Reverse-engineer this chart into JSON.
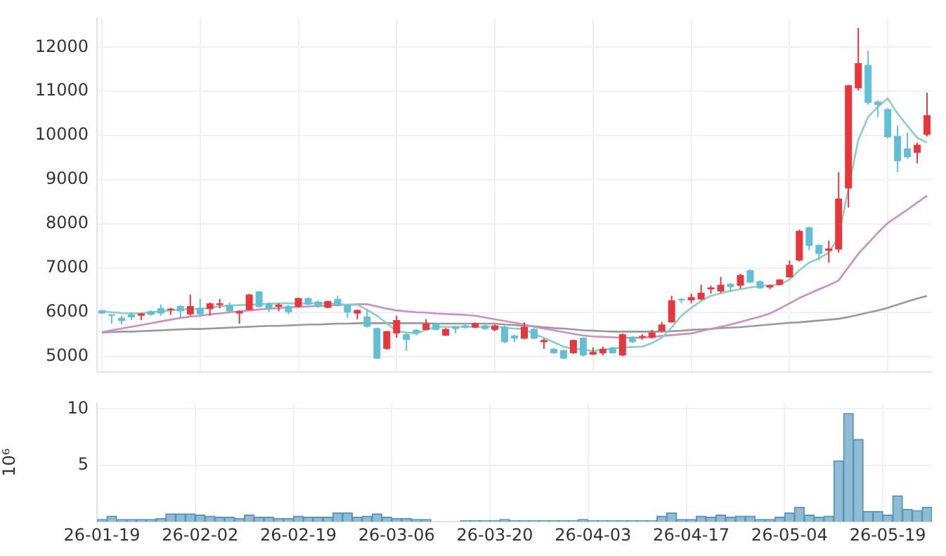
{
  "chart_data": [
    {
      "type": "candlestick",
      "tick_labels": "y",
      "grid": true,
      "ylim": [
        4650,
        12650
      ],
      "yticks": [
        5000,
        6000,
        7000,
        8000,
        9000,
        10000,
        11000,
        12000
      ],
      "categories": [
        null,
        null,
        null,
        null,
        null,
        null,
        null,
        null,
        null,
        null,
        null,
        null,
        null,
        null,
        null,
        null,
        null,
        null,
        null,
        null,
        null,
        null,
        null,
        null,
        null,
        null,
        null,
        null,
        null,
        null,
        null,
        null,
        null,
        null,
        null,
        null,
        null,
        null,
        null,
        null,
        null,
        null,
        null,
        null,
        null,
        null,
        null,
        null,
        null,
        null,
        null,
        null,
        null,
        null,
        null,
        null,
        null,
        null,
        null,
        null,
        null,
        null,
        null,
        null,
        null,
        null,
        null,
        null,
        null,
        null,
        null,
        null,
        null,
        null,
        null,
        null,
        null,
        null,
        null,
        null,
        null,
        null,
        null,
        null,
        null
      ],
      "ohlc": [
        [
          6040,
          6050,
          5960,
          5970
        ],
        [
          5950,
          5960,
          5740,
          5920
        ],
        [
          5870,
          5920,
          5720,
          5800
        ],
        [
          5950,
          6000,
          5820,
          5880
        ],
        [
          5920,
          5980,
          5820,
          5970
        ],
        [
          6020,
          6040,
          5920,
          5940
        ],
        [
          6090,
          6170,
          5920,
          5970
        ],
        [
          6050,
          6100,
          5940,
          6080
        ],
        [
          6140,
          6160,
          5850,
          6020
        ],
        [
          5950,
          6400,
          5920,
          6140
        ],
        [
          6100,
          6300,
          5890,
          5950
        ],
        [
          6070,
          6220,
          5920,
          6200
        ],
        [
          6160,
          6300,
          6090,
          6200
        ],
        [
          6170,
          6220,
          5970,
          6020
        ],
        [
          5970,
          6040,
          5740,
          6020
        ],
        [
          6050,
          6410,
          6040,
          6400
        ],
        [
          6470,
          6480,
          6100,
          6120
        ],
        [
          6200,
          6220,
          6000,
          6070
        ],
        [
          6120,
          6200,
          6020,
          6170
        ],
        [
          6140,
          6160,
          5950,
          6000
        ],
        [
          6120,
          6330,
          6100,
          6320
        ],
        [
          6320,
          6330,
          6160,
          6170
        ],
        [
          6240,
          6260,
          6100,
          6120
        ],
        [
          6100,
          6260,
          6090,
          6250
        ],
        [
          6300,
          6370,
          6130,
          6150
        ],
        [
          6170,
          6190,
          5870,
          5990
        ],
        [
          5970,
          6060,
          5840,
          6050
        ],
        [
          5900,
          6070,
          5650,
          5670
        ],
        [
          5640,
          5650,
          4940,
          4950
        ],
        [
          5170,
          5570,
          5150,
          5570
        ],
        [
          5520,
          5920,
          5420,
          5820
        ],
        [
          5500,
          5520,
          5120,
          5370
        ],
        [
          5600,
          5620,
          5470,
          5520
        ],
        [
          5600,
          5840,
          5590,
          5740
        ],
        [
          5740,
          5760,
          5590,
          5600
        ],
        [
          5470,
          5640,
          5460,
          5620
        ],
        [
          5670,
          5690,
          5520,
          5620
        ],
        [
          5700,
          5720,
          5630,
          5650
        ],
        [
          5650,
          5770,
          5640,
          5750
        ],
        [
          5700,
          5720,
          5600,
          5620
        ],
        [
          5600,
          5720,
          5570,
          5700
        ],
        [
          5670,
          5690,
          5300,
          5320
        ],
        [
          5470,
          5490,
          5320,
          5400
        ],
        [
          5400,
          5770,
          5390,
          5670
        ],
        [
          5620,
          5640,
          5390,
          5400
        ],
        [
          5320,
          5400,
          5170,
          5370
        ],
        [
          5170,
          5190,
          5060,
          5070
        ],
        [
          5140,
          5150,
          4940,
          4950
        ],
        [
          5070,
          5380,
          5060,
          5370
        ],
        [
          5420,
          5430,
          5000,
          5020
        ],
        [
          5040,
          5200,
          5030,
          5100
        ],
        [
          5070,
          5220,
          5020,
          5170
        ],
        [
          5200,
          5220,
          5060,
          5070
        ],
        [
          5020,
          5520,
          5000,
          5500
        ],
        [
          5440,
          5460,
          5300,
          5320
        ],
        [
          5440,
          5500,
          5380,
          5460
        ],
        [
          5420,
          5600,
          5400,
          5540
        ],
        [
          5570,
          5780,
          5560,
          5720
        ],
        [
          5770,
          6370,
          5760,
          6270
        ],
        [
          6300,
          6320,
          6200,
          6270
        ],
        [
          6270,
          6420,
          6200,
          6340
        ],
        [
          6290,
          6620,
          6270,
          6440
        ],
        [
          6520,
          6600,
          6420,
          6560
        ],
        [
          6470,
          6800,
          6440,
          6620
        ],
        [
          6640,
          6660,
          6470,
          6570
        ],
        [
          6600,
          6870,
          6530,
          6840
        ],
        [
          6950,
          6970,
          6660,
          6670
        ],
        [
          6700,
          6720,
          6530,
          6540
        ],
        [
          6560,
          6620,
          6520,
          6610
        ],
        [
          6620,
          6750,
          6610,
          6740
        ],
        [
          6790,
          7170,
          6780,
          7070
        ],
        [
          7170,
          7870,
          7150,
          7840
        ],
        [
          7920,
          7940,
          7400,
          7500
        ],
        [
          7520,
          7540,
          7170,
          7320
        ],
        [
          7390,
          7620,
          7120,
          7440
        ],
        [
          7420,
          9170,
          7350,
          8570
        ],
        [
          8800,
          11150,
          8370,
          11140
        ],
        [
          11070,
          12440,
          11020,
          11640
        ],
        [
          11600,
          11920,
          10700,
          10740
        ],
        [
          10770,
          10800,
          10420,
          10690
        ],
        [
          10600,
          10620,
          9940,
          9960
        ],
        [
          9990,
          10220,
          9170,
          9420
        ],
        [
          9710,
          10070,
          9480,
          9510
        ],
        [
          9610,
          9840,
          9370,
          9790
        ],
        [
          10020,
          10970,
          9980,
          10460
        ]
      ],
      "colors": [
        "#62bfd6",
        "#62bfd6",
        "#62bfd6",
        "#62bfd6",
        "#e8363d",
        "#62bfd6",
        "#62bfd6",
        "#e8363d",
        "#62bfd6",
        "#e8363d",
        "#62bfd6",
        "#e8363d",
        "#e8363d",
        "#62bfd6",
        "#e8363d",
        "#e8363d",
        "#62bfd6",
        "#62bfd6",
        "#e8363d",
        "#62bfd6",
        "#e8363d",
        "#62bfd6",
        "#62bfd6",
        "#e8363d",
        "#62bfd6",
        "#62bfd6",
        "#e8363d",
        "#62bfd6",
        "#62bfd6",
        "#e8363d",
        "#e8363d",
        "#62bfd6",
        "#62bfd6",
        "#e8363d",
        "#62bfd6",
        "#e8363d",
        "#62bfd6",
        "#62bfd6",
        "#e8363d",
        "#62bfd6",
        "#e8363d",
        "#62bfd6",
        "#62bfd6",
        "#e8363d",
        "#62bfd6",
        "#e8363d",
        "#62bfd6",
        "#62bfd6",
        "#e8363d",
        "#62bfd6",
        "#e8363d",
        "#e8363d",
        "#62bfd6",
        "#e8363d",
        "#62bfd6",
        "#e8363d",
        "#e8363d",
        "#e8363d",
        "#e8363d",
        "#62bfd6",
        "#e8363d",
        "#e8363d",
        "#e8363d",
        "#e8363d",
        "#62bfd6",
        "#e8363d",
        "#62bfd6",
        "#62bfd6",
        "#e8363d",
        "#e8363d",
        "#e8363d",
        "#e8363d",
        "#62bfd6",
        "#62bfd6",
        "#e8363d",
        "#e8363d",
        "#e8363d",
        "#e8363d",
        "#62bfd6",
        "#62bfd6",
        "#62bfd6",
        "#62bfd6",
        "#62bfd6",
        "#e8363d",
        "#e8363d"
      ],
      "series": [
        {
          "type": "line",
          "color": "#8ccfc0",
          "values": [
            6020,
            6000,
            5980,
            5970,
            5980,
            6000,
            6020,
            6040,
            6060,
            6070,
            6070,
            6100,
            6130,
            6150,
            6160,
            6170,
            6180,
            6190,
            6200,
            6200,
            6200,
            6200,
            6200,
            6200,
            6190,
            6160,
            6170,
            6050,
            5920,
            5750,
            5570,
            5540,
            5520,
            5600,
            5670,
            5670,
            5670,
            5670,
            5670,
            5670,
            5670,
            5650,
            5630,
            5620,
            5500,
            5420,
            5320,
            5220,
            5170,
            5150,
            5120,
            5150,
            5170,
            5200,
            5210,
            5220,
            5300,
            5420,
            5650,
            5920,
            6100,
            6250,
            6370,
            6430,
            6480,
            6520,
            6560,
            6590,
            6610,
            6620,
            6740,
            6950,
            7120,
            7220,
            7350,
            7700,
            null,
            9900,
            10420,
            10650,
            10840,
            10500,
            10220,
            9950,
            9840
          ]
        },
        {
          "type": "line",
          "color": "#cc8fc4",
          "values": [
            5550,
            5590,
            5630,
            5670,
            5710,
            5750,
            5790,
            5830,
            5870,
            5900,
            5920,
            5950,
            5970,
            6000,
            6020,
            6040,
            6060,
            6080,
            6090,
            6110,
            6120,
            6130,
            6140,
            6150,
            6160,
            6170,
            6180,
            6180,
            6130,
            6080,
            6040,
            6020,
            6000,
            5990,
            5970,
            5960,
            5950,
            5940,
            5920,
            5880,
            5840,
            5800,
            5760,
            5720,
            5670,
            5630,
            5590,
            5550,
            5510,
            5470,
            5450,
            5440,
            5430,
            5420,
            5420,
            5420,
            5440,
            5460,
            5480,
            5500,
            5520,
            5570,
            5620,
            5670,
            5720,
            5780,
            5840,
            5900,
            5970,
            6080,
            6200,
            6320,
            6420,
            6520,
            6610,
            6720,
            7020,
            7320,
            7560,
            7800,
            8020,
            8170,
            8320,
            8480,
            8640
          ]
        },
        {
          "type": "line",
          "color": "#999999",
          "values": [
            5540,
            5550,
            5560,
            5560,
            5570,
            5580,
            5590,
            5600,
            5610,
            5620,
            5620,
            5630,
            5640,
            5650,
            5660,
            5670,
            5680,
            5690,
            5690,
            5700,
            5710,
            5720,
            5720,
            5730,
            5740,
            5740,
            5750,
            5750,
            5750,
            5750,
            5750,
            5750,
            5750,
            5750,
            5740,
            5740,
            5740,
            5740,
            5740,
            5740,
            5740,
            5720,
            5710,
            5690,
            5680,
            5660,
            5640,
            5630,
            5610,
            5590,
            5580,
            5570,
            5560,
            5560,
            5560,
            5560,
            5560,
            5560,
            5570,
            5580,
            5600,
            5610,
            5620,
            5640,
            5650,
            5660,
            5680,
            5700,
            5720,
            5740,
            5760,
            5770,
            5790,
            5810,
            5830,
            5850,
            5890,
            5940,
            5990,
            6040,
            6100,
            6170,
            6240,
            6310,
            6370
          ]
        }
      ]
    },
    {
      "type": "bar",
      "ylabel": "10⁶",
      "grid": true,
      "color": "#8fbcd4",
      "ylim": [
        0,
        10.5
      ],
      "yticks": [
        5,
        10
      ],
      "categories": [
        "26-01-19",
        null,
        null,
        null,
        null,
        null,
        null,
        null,
        null,
        null,
        "26-02-02",
        null,
        null,
        null,
        null,
        null,
        null,
        null,
        null,
        null,
        "26-02-19",
        null,
        null,
        null,
        null,
        null,
        null,
        null,
        null,
        null,
        "26-03-06",
        null,
        null,
        null,
        null,
        null,
        null,
        null,
        null,
        null,
        "26-03-20",
        null,
        null,
        null,
        null,
        null,
        null,
        null,
        null,
        null,
        "26-04-03",
        null,
        null,
        null,
        null,
        null,
        null,
        null,
        null,
        null,
        "26-04-17",
        null,
        null,
        null,
        null,
        null,
        null,
        null,
        null,
        null,
        "26-05-04",
        null,
        null,
        null,
        null,
        null,
        null,
        null,
        null,
        null,
        "26-05-19",
        null,
        null,
        null,
        null
      ],
      "values": [
        0.2,
        0.5,
        0.2,
        0.2,
        0.2,
        0.2,
        0.3,
        0.7,
        0.7,
        0.7,
        0.6,
        0.5,
        0.4,
        0.4,
        0.3,
        0.6,
        0.4,
        0.4,
        0.3,
        0.3,
        0.5,
        0.4,
        0.4,
        0.4,
        0.8,
        0.8,
        0.4,
        0.5,
        0.7,
        0.4,
        0.3,
        0.3,
        0.2,
        0.2,
        0,
        0,
        0,
        0.1,
        0.1,
        0.1,
        0.1,
        0.2,
        0.1,
        0.1,
        0.1,
        0.1,
        0.1,
        0.1,
        0.1,
        0.2,
        0.1,
        0.1,
        0.1,
        0.1,
        0.1,
        0.1,
        0.1,
        0.5,
        0.8,
        0.2,
        0.2,
        0.5,
        0.4,
        0.6,
        0.4,
        0.5,
        0.5,
        0.2,
        0.2,
        0.4,
        0.8,
        1.3,
        0.6,
        0.4,
        0.5,
        5.4,
        9.6,
        7.3,
        0.9,
        0.9,
        0.6,
        2.3,
        1.1,
        1.0,
        1.3
      ]
    }
  ]
}
